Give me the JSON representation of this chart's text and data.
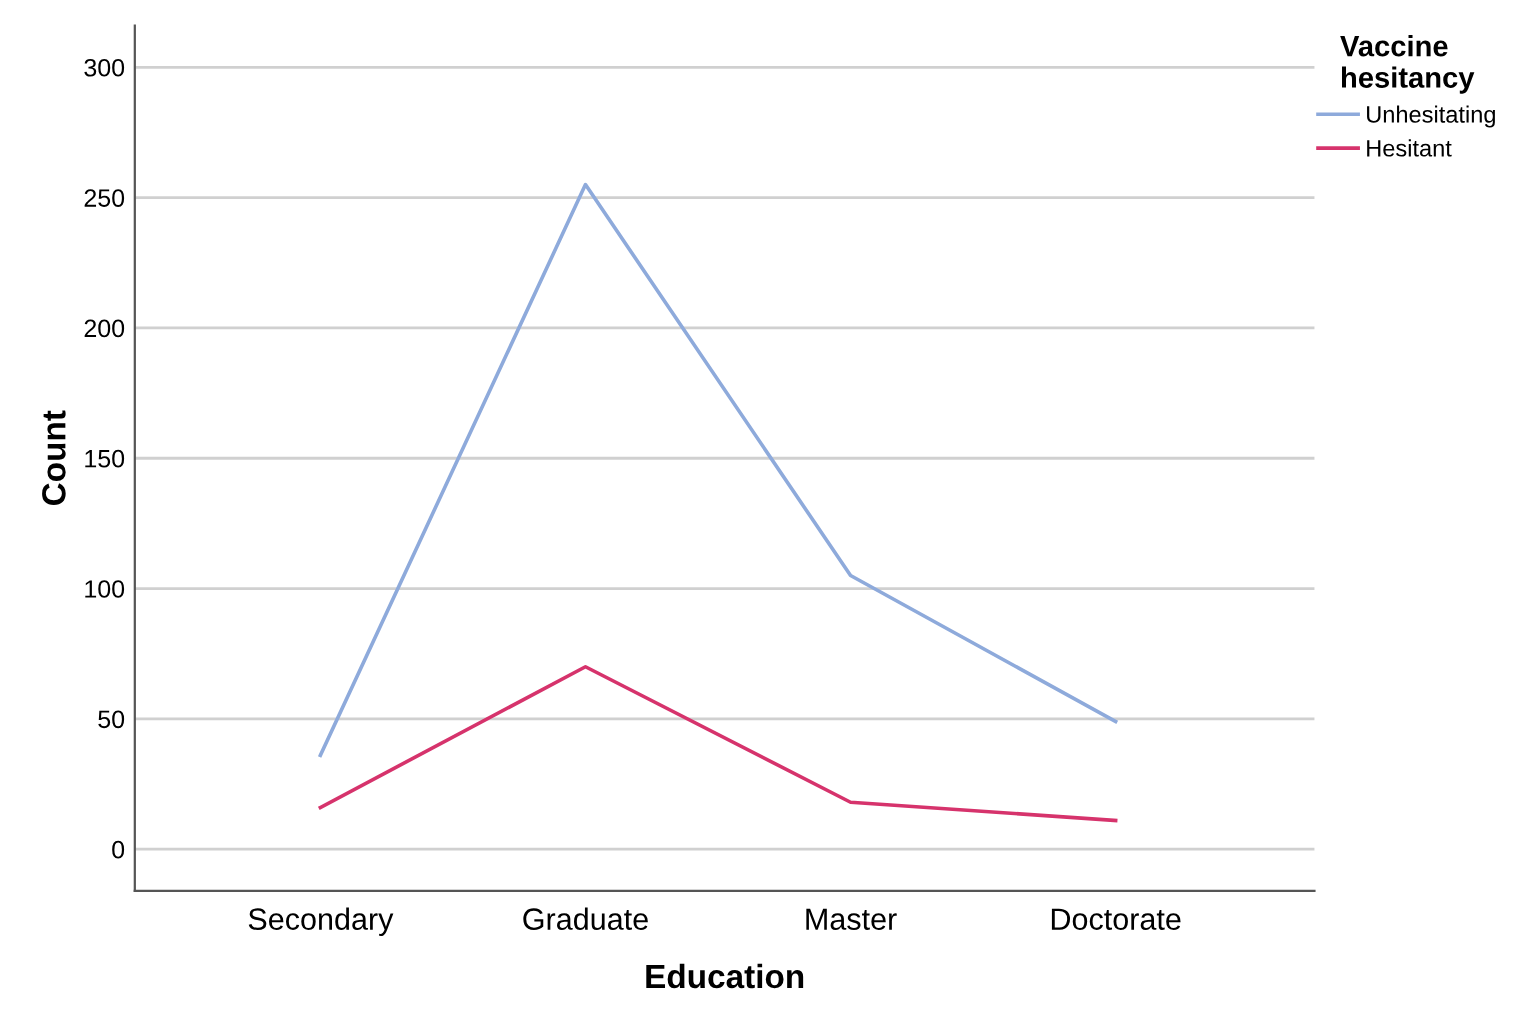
{
  "chart_data": {
    "type": "line",
    "xlabel": "Education",
    "ylabel": "Count",
    "legend_title": "Vaccine\nhesitancy",
    "categories": [
      "Secondary",
      "Graduate",
      "Master",
      "Doctorate"
    ],
    "series": [
      {
        "name": "Unhesitating",
        "color": "#8eaadb",
        "values": [
          36,
          255,
          105,
          49
        ]
      },
      {
        "name": "Hesitant",
        "color": "#d6336c",
        "values": [
          16,
          70,
          18,
          11
        ]
      }
    ],
    "ylim": [
      -16,
      316
    ],
    "yticks": [
      0,
      50,
      100,
      150,
      200,
      250,
      300
    ],
    "grid": "y",
    "legend": "top right",
    "marker": "none",
    "line_style": "solid"
  }
}
